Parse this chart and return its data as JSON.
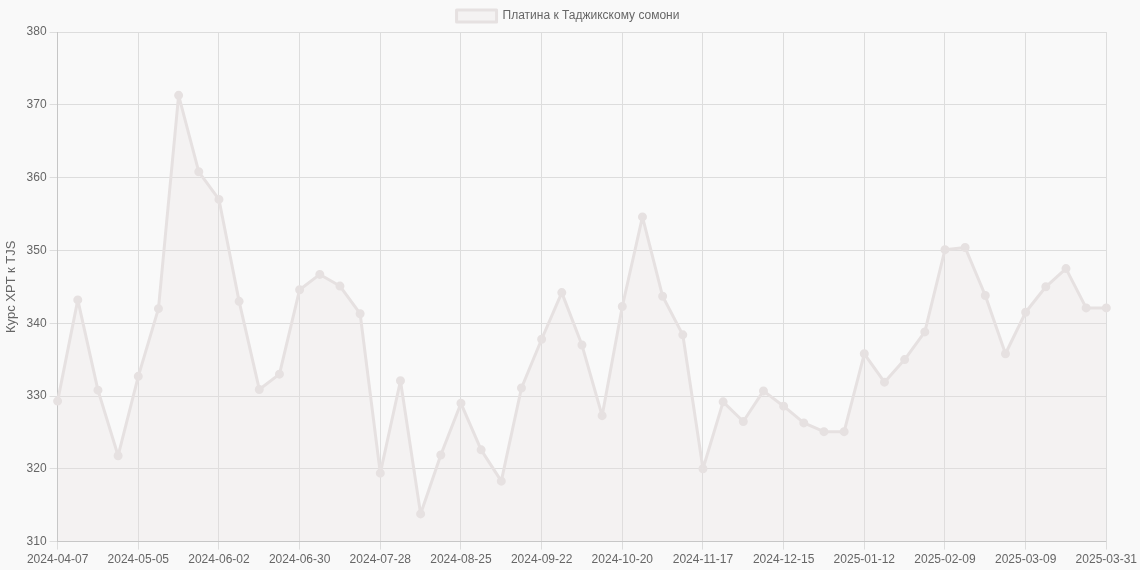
{
  "chart_data": {
    "type": "area",
    "ylabel": "Курс XPT к TJS",
    "categories": [
      "2024-04-07",
      null,
      null,
      null,
      "2024-05-05",
      null,
      null,
      null,
      "2024-06-02",
      null,
      null,
      null,
      "2024-06-30",
      null,
      null,
      null,
      "2024-07-28",
      null,
      null,
      null,
      "2024-08-25",
      null,
      null,
      null,
      "2024-09-22",
      null,
      null,
      null,
      "2024-10-20",
      null,
      null,
      null,
      "2024-11-17",
      null,
      null,
      null,
      "2024-12-15",
      null,
      null,
      null,
      "2025-01-12",
      null,
      null,
      null,
      "2025-02-09",
      null,
      null,
      null,
      "2025-03-09",
      null,
      null,
      null,
      "2025-03-31"
    ],
    "series": [
      {
        "name": "Платина к Таджикскому сомони",
        "color": "#e6e1e1",
        "values": [
          329.3,
          343.2,
          330.8,
          321.8,
          332.7,
          342,
          371.3,
          360.8,
          357,
          343,
          330.9,
          333,
          344.6,
          346.7,
          345.1,
          341.3,
          319.4,
          332.1,
          313.8,
          321.9,
          329,
          322.6,
          318.3,
          331.1,
          337.8,
          344.2,
          337,
          327.3,
          342.3,
          354.6,
          343.7,
          338.4,
          320,
          329.2,
          326.5,
          330.7,
          328.6,
          326.3,
          325.1,
          325.1,
          335.8,
          331.9,
          335,
          338.8,
          350.1,
          350.4,
          343.8,
          335.8,
          341.5,
          345,
          347.5,
          342.1,
          342.1
        ]
      }
    ],
    "ylim": [
      310,
      380
    ],
    "yticks": [
      310,
      320,
      330,
      340,
      350,
      360,
      370,
      380
    ],
    "grid": true,
    "legend": "top",
    "marker": "circle"
  }
}
